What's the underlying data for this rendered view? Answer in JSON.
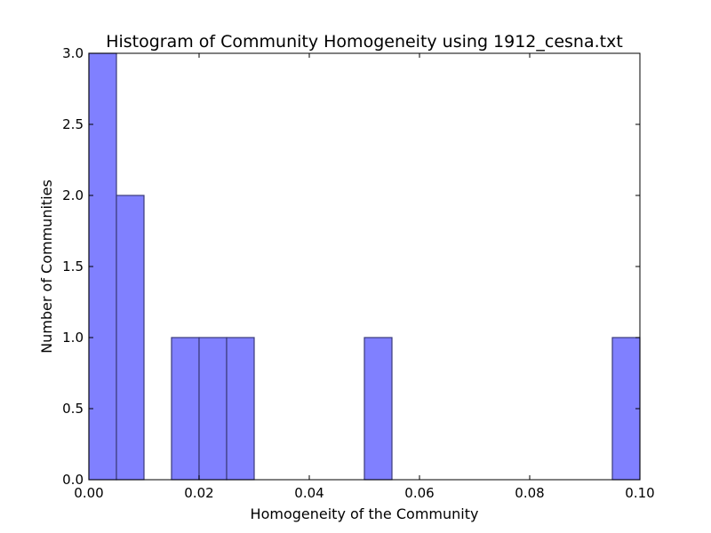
{
  "chart_data": {
    "type": "bar",
    "title": "Histogram of Community Homogeneity using 1912_cesna.txt",
    "xlabel": "Homogeneity of the Community",
    "ylabel": "Number of Communities",
    "xlim": [
      0.0,
      0.1
    ],
    "ylim": [
      0.0,
      3.0
    ],
    "xticks": [
      "0.00",
      "0.02",
      "0.04",
      "0.06",
      "0.08",
      "0.10"
    ],
    "yticks": [
      "0.0",
      "0.5",
      "1.0",
      "1.5",
      "2.0",
      "2.5",
      "3.0"
    ],
    "bins": [
      {
        "start": 0.0,
        "end": 0.005,
        "count": 3
      },
      {
        "start": 0.005,
        "end": 0.01,
        "count": 2
      },
      {
        "start": 0.015,
        "end": 0.02,
        "count": 1
      },
      {
        "start": 0.02,
        "end": 0.025,
        "count": 1
      },
      {
        "start": 0.025,
        "end": 0.03,
        "count": 1
      },
      {
        "start": 0.05,
        "end": 0.055,
        "count": 1
      },
      {
        "start": 0.095,
        "end": 0.1,
        "count": 1
      }
    ],
    "bar_color": "#8080ff",
    "bar_edge_color": "#3a3a7a",
    "grid": false
  }
}
